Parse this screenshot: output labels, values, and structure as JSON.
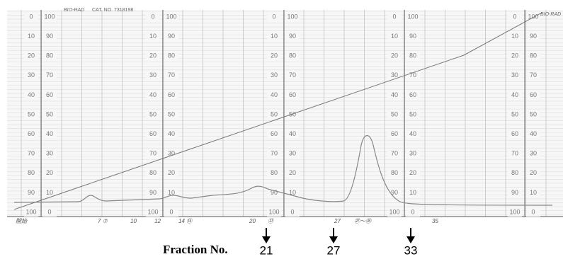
{
  "header": {
    "brand": "BIO-RAD",
    "catalog": "CAT. NO. 7318198",
    "brand_right": "BIO-RAD"
  },
  "scale": {
    "left": [
      "0",
      "10",
      "20",
      "30",
      "40",
      "50",
      "60",
      "70",
      "80",
      "90",
      "100"
    ],
    "right": [
      "100",
      "90",
      "80",
      "70",
      "60",
      "50",
      "40",
      "30",
      "20",
      "10",
      "0"
    ]
  },
  "handwritten": [
    {
      "text": "開始"
    },
    {
      "text": "7 ⑦"
    },
    {
      "text": "10"
    },
    {
      "text": "12"
    },
    {
      "text": "14 ⑭"
    },
    {
      "text": "20"
    },
    {
      "text": "㉑"
    },
    {
      "text": "27"
    },
    {
      "text": "㉗～㉟"
    },
    {
      "text": "35"
    }
  ],
  "fraction": {
    "label": "Fraction No.",
    "numbers": [
      "21",
      "27",
      "33"
    ]
  }
}
